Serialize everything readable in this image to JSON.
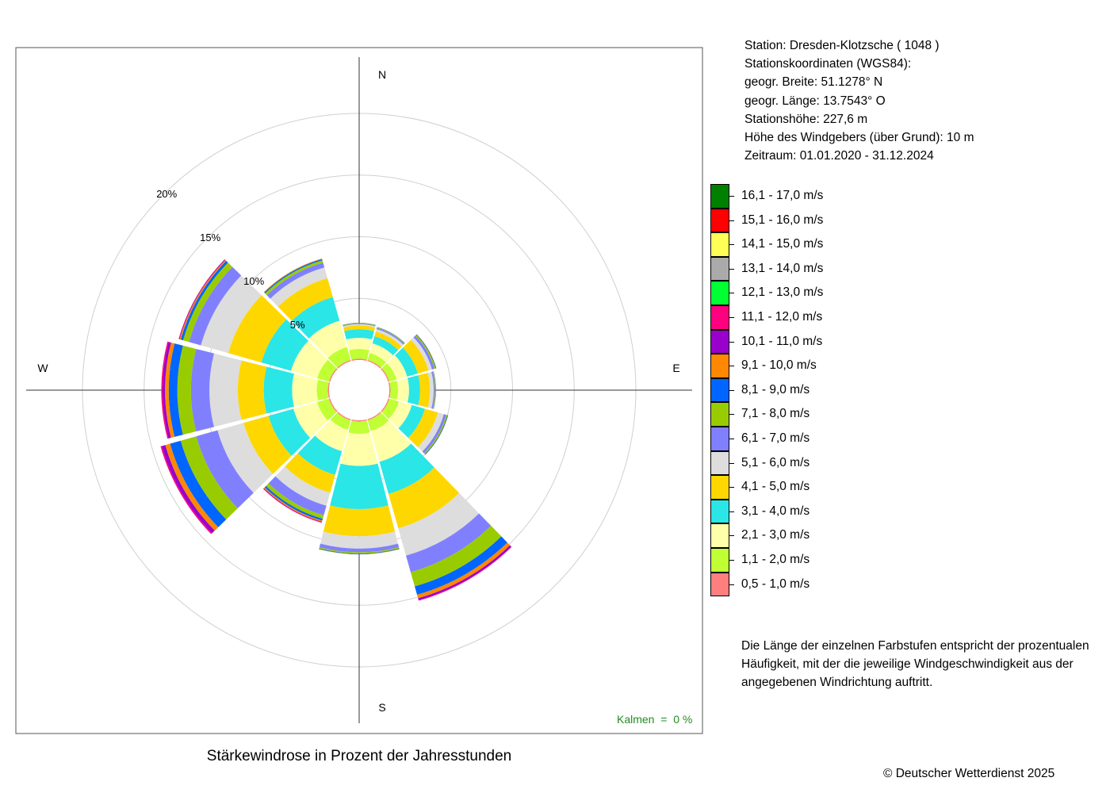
{
  "station": {
    "line1": "Station:  Dresden-Klotzsche  ( 1048 )",
    "line2": "Stationskoordinaten (WGS84):",
    "line3": "geogr. Breite: 51.1278° N",
    "line4": "geogr. Länge: 13.7543° O",
    "line5": "Stationshöhe: 227,6 m",
    "line6": "Höhe des Windgebers (über Grund): 10 m",
    "line7": "Zeitraum: 01.01.2020 - 31.12.2024"
  },
  "note": {
    "line1": "Die Länge der einzelnen Farbstufen entspricht der prozentualen",
    "line2": "Häufigkeit, mit der die jeweilige Windgeschwindigkeit aus der",
    "line3": "angegebenen Windrichtung auftritt."
  },
  "copyright": "© Deutscher Wetterdienst  2025",
  "calm_label": "Kalmen  =  0 %",
  "chart_data": {
    "type": "windrose",
    "title": "Stärkewindrose in Prozent der Jahresstunden",
    "unit": "percent of yearly hours",
    "compass": [
      "N",
      "E",
      "S",
      "W"
    ],
    "rings": [
      5,
      10,
      15,
      20
    ],
    "ring_labels": [
      "5%",
      "10%",
      "15%",
      "20%"
    ],
    "calm_percent": 0,
    "directions_deg": [
      0,
      30,
      60,
      90,
      120,
      150,
      180,
      210,
      240,
      270,
      300,
      330
    ],
    "bins": [
      {
        "label": "0,5 - 1,0 m/s",
        "color": "#ff7f7f"
      },
      {
        "label": "1,1 - 2,0 m/s",
        "color": "#c0ff33"
      },
      {
        "label": "2,1 - 3,0 m/s",
        "color": "#ffffaa"
      },
      {
        "label": "3,1 - 4,0 m/s",
        "color": "#2ae6e6"
      },
      {
        "label": "4,1 - 5,0 m/s",
        "color": "#ffd700"
      },
      {
        "label": "5,1 - 6,0 m/s",
        "color": "#dddddd"
      },
      {
        "label": "6,1 - 7,0 m/s",
        "color": "#8080ff"
      },
      {
        "label": "7,1 - 8,0 m/s",
        "color": "#99cc00"
      },
      {
        "label": "8,1 - 9,0 m/s",
        "color": "#0066ff"
      },
      {
        "label": "9,1 - 10,0 m/s",
        "color": "#ff8800"
      },
      {
        "label": "10,1 - 11,0 m/s",
        "color": "#9900cc"
      },
      {
        "label": "11,1 - 12,0 m/s",
        "color": "#ff0080"
      },
      {
        "label": "12,1 - 13,0 m/s",
        "color": "#00ff33"
      },
      {
        "label": "13,1 - 14,0 m/s",
        "color": "#aaaaaa"
      },
      {
        "label": "14,1 - 15,0 m/s",
        "color": "#ffff55"
      },
      {
        "label": "15,1 - 16,0 m/s",
        "color": "#ff0000"
      },
      {
        "label": "16,1 - 17,0 m/s",
        "color": "#008000"
      }
    ],
    "values": [
      [
        0.1,
        0.8,
        0.9,
        0.7,
        0.3,
        0.1,
        0.05,
        0.05,
        0.02,
        0,
        0,
        0,
        0,
        0,
        0,
        0,
        0
      ],
      [
        0.1,
        0.6,
        0.8,
        0.6,
        0.4,
        0.2,
        0.1,
        0.05,
        0.03,
        0.01,
        0,
        0,
        0,
        0,
        0,
        0,
        0
      ],
      [
        0.1,
        0.6,
        0.9,
        0.9,
        0.9,
        0.3,
        0.2,
        0.1,
        0.05,
        0.02,
        0,
        0,
        0,
        0,
        0,
        0,
        0
      ],
      [
        0.1,
        0.6,
        0.9,
        0.9,
        0.8,
        0.3,
        0.1,
        0.05,
        0.03,
        0.01,
        0,
        0,
        0,
        0,
        0,
        0,
        0
      ],
      [
        0.1,
        0.8,
        1.1,
        1.1,
        1.1,
        0.5,
        0.2,
        0.1,
        0.05,
        0.02,
        0,
        0,
        0,
        0,
        0,
        0,
        0
      ],
      [
        0.1,
        0.9,
        2.6,
        2.7,
        2.9,
        2.3,
        1.4,
        1.2,
        0.7,
        0.3,
        0.15,
        0.05,
        0,
        0,
        0,
        0,
        0
      ],
      [
        0.1,
        1.0,
        2.6,
        3.5,
        2.2,
        1.0,
        0.3,
        0.1,
        0.05,
        0.02,
        0,
        0,
        0,
        0,
        0,
        0,
        0
      ],
      [
        0.1,
        0.8,
        1.8,
        2.0,
        1.5,
        1.1,
        0.8,
        0.3,
        0.15,
        0.1,
        0.05,
        0.03,
        0,
        0,
        0,
        0,
        0
      ],
      [
        0.1,
        1.0,
        2.0,
        2.1,
        2.1,
        2.2,
        1.8,
        1.3,
        0.9,
        0.4,
        0.3,
        0.1,
        0,
        0,
        0,
        0,
        0
      ],
      [
        0.1,
        0.9,
        2.0,
        2.3,
        2.1,
        2.3,
        1.5,
        1.1,
        0.7,
        0.3,
        0.2,
        0.1,
        0,
        0,
        0,
        0,
        0
      ],
      [
        0.1,
        1.0,
        2.2,
        2.5,
        2.8,
        2.3,
        1.0,
        0.5,
        0.2,
        0.1,
        0.05,
        0.03,
        0,
        0,
        0,
        0,
        0
      ],
      [
        0.1,
        1.1,
        2.2,
        2.0,
        1.6,
        0.9,
        0.4,
        0.2,
        0.1,
        0.05,
        0,
        0,
        0,
        0,
        0,
        0,
        0
      ]
    ]
  }
}
